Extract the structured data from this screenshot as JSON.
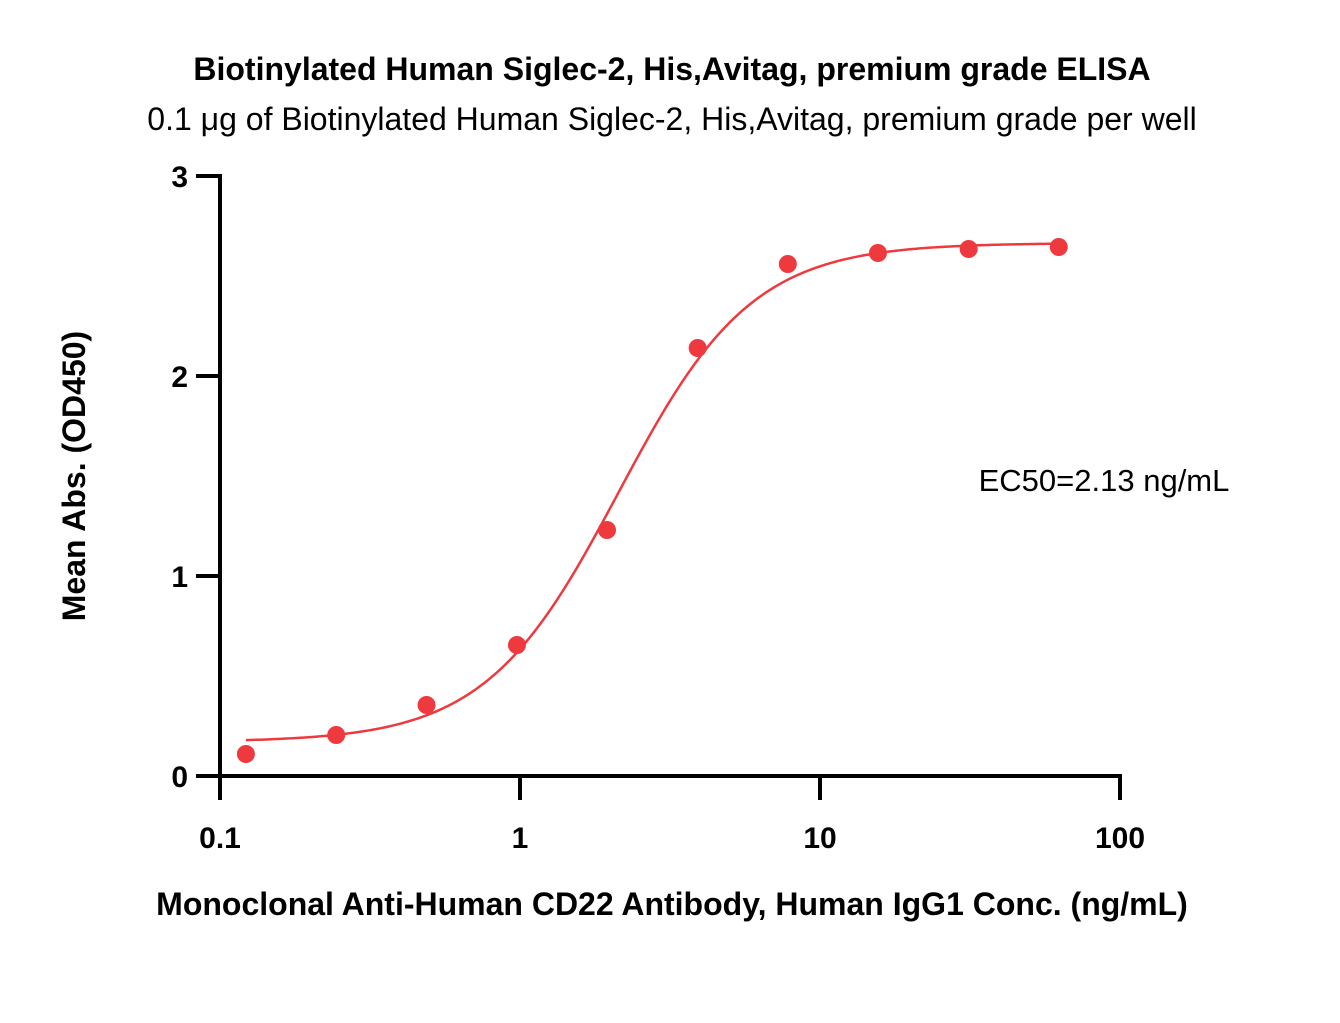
{
  "chart_data": {
    "type": "scatter",
    "title": "Biotinylated Human Siglec-2, His,Avitag, premium grade ELISA",
    "subtitle": "0.1 μg of Biotinylated Human Siglec-2, His,Avitag, premium grade per well",
    "xlabel": "Monoclonal Anti-Human CD22 Antibody, Human IgG1 Conc. (ng/mL)",
    "ylabel": "Mean Abs. (OD450)",
    "x_scale": "log",
    "xlim": [
      0.1,
      100
    ],
    "ylim": [
      0,
      3
    ],
    "x_ticks": [
      0.1,
      1,
      10,
      100
    ],
    "x_tick_labels": [
      "0.1",
      "1",
      "10",
      "100"
    ],
    "y_ticks": [
      0,
      1,
      2,
      3
    ],
    "y_tick_labels": [
      "0",
      "1",
      "2",
      "3"
    ],
    "grid": false,
    "point_color": "#ee3a3f",
    "curve_color": "#ee3a3f",
    "series": [
      {
        "x": [
          0.122,
          0.244,
          0.488,
          0.977,
          1.95,
          3.91,
          7.81,
          15.6,
          31.3,
          62.5
        ],
        "y": [
          0.11,
          0.205,
          0.355,
          0.655,
          1.23,
          2.14,
          2.56,
          2.615,
          2.635,
          2.645
        ]
      }
    ],
    "fit": {
      "model": "4PL",
      "bottom": 0.17,
      "top": 2.665,
      "ec50": 2.13,
      "hill": 1.95,
      "x_range": [
        0.122,
        62.5
      ]
    },
    "annotation": "EC50=2.13 ng/mL"
  }
}
